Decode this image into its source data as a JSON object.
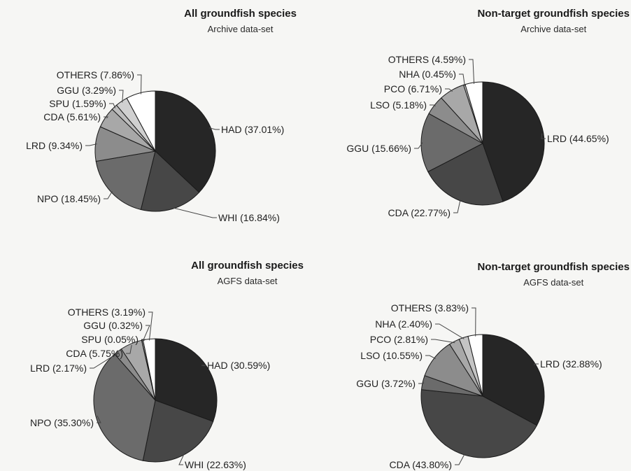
{
  "chart_data": [
    {
      "type": "pie",
      "title": "All groundfish species",
      "subtitle": "Archive data-set",
      "slices": [
        {
          "label": "HAD (37.01%)",
          "value": 37.01,
          "color": "#262626"
        },
        {
          "label": "WHI (16.84%)",
          "value": 16.84,
          "color": "#474747"
        },
        {
          "label": "NPO (18.45%)",
          "value": 18.45,
          "color": "#6b6b6b"
        },
        {
          "label": "LRD (9.34%)",
          "value": 9.34,
          "color": "#8c8c8c"
        },
        {
          "label": "CDA (5.61%)",
          "value": 5.61,
          "color": "#a8a8a8"
        },
        {
          "label": "SPU (1.59%)",
          "value": 1.59,
          "color": "#bdbdbd"
        },
        {
          "label": "GGU (3.29%)",
          "value": 3.29,
          "color": "#d0d0d0"
        },
        {
          "label": "OTHERS (7.86%)",
          "value": 7.86,
          "color": "#ffffff"
        }
      ]
    },
    {
      "type": "pie",
      "title": "Non-target groundfish species",
      "subtitle": "Archive data-set",
      "slices": [
        {
          "label": "LRD (44.65%)",
          "value": 44.65,
          "color": "#262626"
        },
        {
          "label": "CDA (22.77%)",
          "value": 22.77,
          "color": "#474747"
        },
        {
          "label": "GGU (15.66%)",
          "value": 15.66,
          "color": "#6b6b6b"
        },
        {
          "label": "LSO (5.18%)",
          "value": 5.18,
          "color": "#8c8c8c"
        },
        {
          "label": "PCO (6.71%)",
          "value": 6.71,
          "color": "#a8a8a8"
        },
        {
          "label": "NHA (0.45%)",
          "value": 0.45,
          "color": "#c4c4c4"
        },
        {
          "label": "OTHERS (4.59%)",
          "value": 4.59,
          "color": "#ffffff"
        }
      ]
    },
    {
      "type": "pie",
      "title": "All groundfish species",
      "subtitle": "AGFS data-set",
      "slices": [
        {
          "label": "HAD (30.59%)",
          "value": 30.59,
          "color": "#262626"
        },
        {
          "label": "WHI (22.63%)",
          "value": 22.63,
          "color": "#474747"
        },
        {
          "label": "NPO (35.30%)",
          "value": 35.3,
          "color": "#6b6b6b"
        },
        {
          "label": "LRD (2.17%)",
          "value": 2.17,
          "color": "#8c8c8c"
        },
        {
          "label": "CDA (5.75%)",
          "value": 5.75,
          "color": "#a8a8a8"
        },
        {
          "label": "SPU (0.05%)",
          "value": 0.05,
          "color": "#bdbdbd"
        },
        {
          "label": "GGU (0.32%)",
          "value": 0.32,
          "color": "#d0d0d0"
        },
        {
          "label": "OTHERS (3.19%)",
          "value": 3.19,
          "color": "#ffffff"
        }
      ]
    },
    {
      "type": "pie",
      "title": "Non-target groundfish species",
      "subtitle": "AGFS data-set",
      "slices": [
        {
          "label": "LRD (32.88%)",
          "value": 32.88,
          "color": "#262626"
        },
        {
          "label": "CDA (43.80%)",
          "value": 43.8,
          "color": "#474747"
        },
        {
          "label": "GGU (3.72%)",
          "value": 3.72,
          "color": "#6b6b6b"
        },
        {
          "label": "LSO (10.55%)",
          "value": 10.55,
          "color": "#8c8c8c"
        },
        {
          "label": "PCO (2.81%)",
          "value": 2.81,
          "color": "#a8a8a8"
        },
        {
          "label": "NHA (2.40%)",
          "value": 2.4,
          "color": "#c4c4c4"
        },
        {
          "label": "OTHERS (3.83%)",
          "value": 3.83,
          "color": "#ffffff"
        }
      ]
    }
  ]
}
